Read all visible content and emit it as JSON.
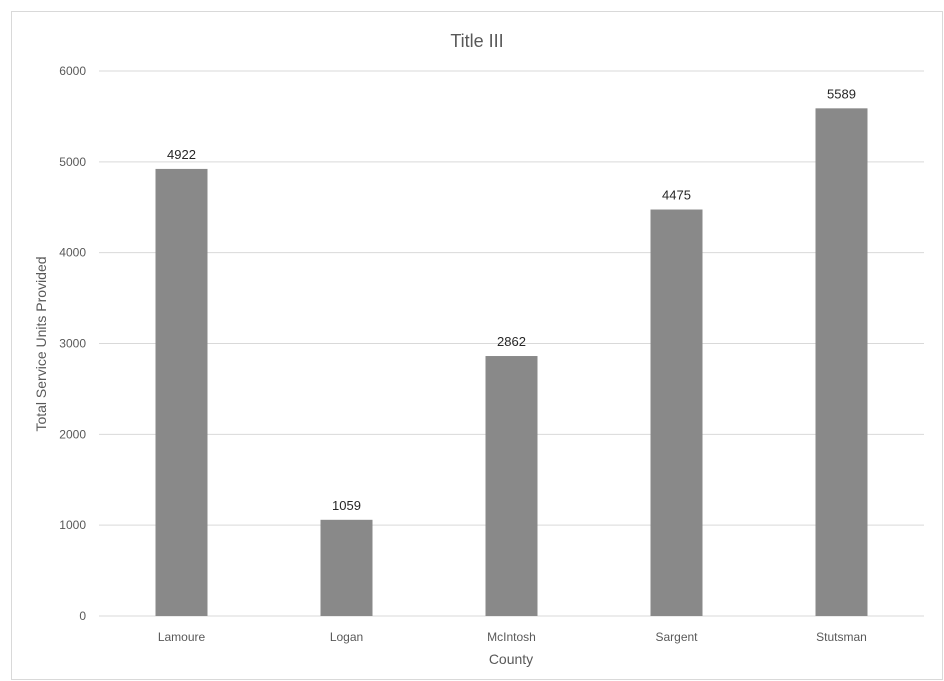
{
  "chart_data": {
    "type": "bar",
    "title": "Title III",
    "xlabel": "County",
    "ylabel": "Total Service Units Provided",
    "categories": [
      "Lamoure",
      "Logan",
      "McIntosh",
      "Sargent",
      "Stutsman"
    ],
    "values": [
      4922,
      1059,
      2862,
      4475,
      5589
    ],
    "ylim": [
      0,
      6000
    ],
    "yticks": [
      0,
      1000,
      2000,
      3000,
      4000,
      5000,
      6000
    ],
    "grid": true,
    "legend": "none",
    "bar_color": "#898989",
    "gridline_color": "#d9d9d9"
  }
}
